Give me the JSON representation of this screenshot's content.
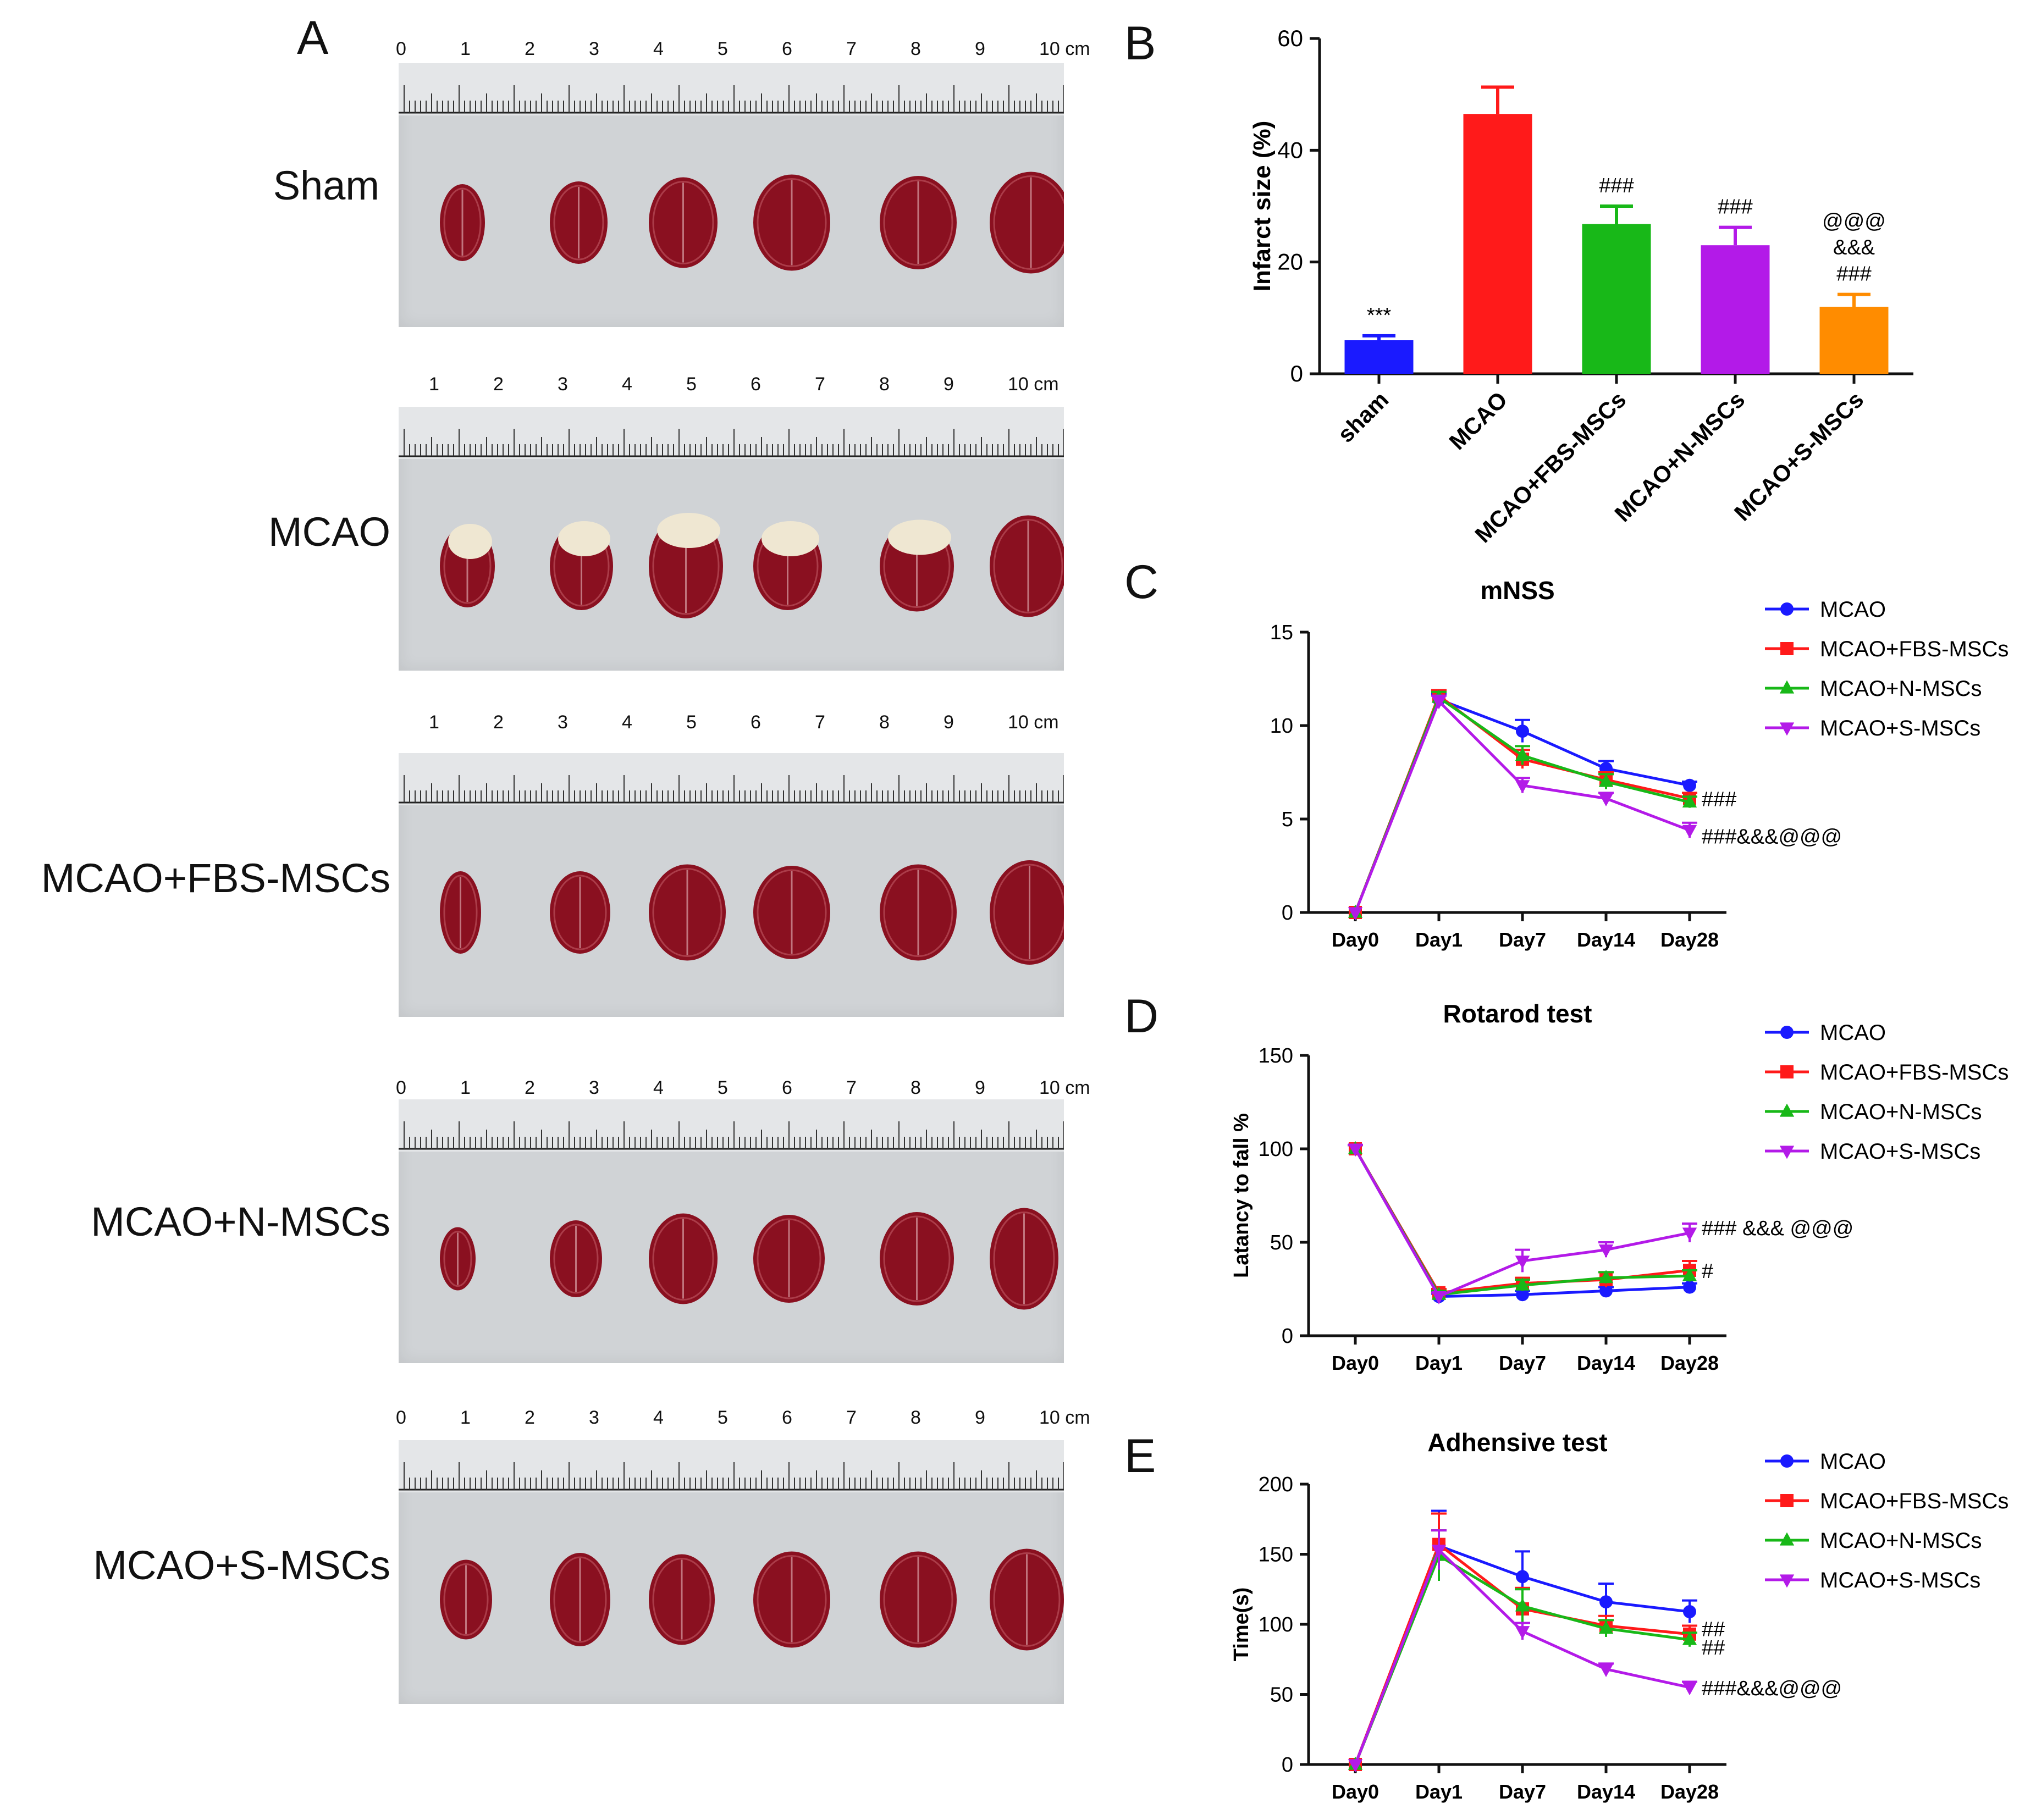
{
  "panel_letters": {
    "a": "A",
    "b": "B",
    "c": "C",
    "d": "D",
    "e": "E"
  },
  "photos": [
    {
      "group": "Sham",
      "scale": [
        "0",
        "1",
        "2",
        "3",
        "4",
        "5",
        "6",
        "7",
        "8",
        "9",
        "10 cm"
      ]
    },
    {
      "group": "MCAO",
      "scale": [
        "1",
        "2",
        "3",
        "4",
        "5",
        "6",
        "7",
        "8",
        "9",
        "10 cm"
      ]
    },
    {
      "group": "MCAO+FBS-MSCs",
      "scale": [
        "1",
        "2",
        "3",
        "4",
        "5",
        "6",
        "7",
        "8",
        "9",
        "10 cm"
      ]
    },
    {
      "group": "MCAO+N-MSCs",
      "scale": [
        "0",
        "1",
        "2",
        "3",
        "4",
        "5",
        "6",
        "7",
        "8",
        "9",
        "10 cm"
      ]
    },
    {
      "group": "MCAO+S-MSCs",
      "scale": [
        "0",
        "1",
        "2",
        "3",
        "4",
        "5",
        "6",
        "7",
        "8",
        "9",
        "10 cm"
      ]
    }
  ],
  "colors": {
    "blue": "#1a1aff",
    "red": "#ff1a1a",
    "green": "#18b818",
    "purple": "#b31ae8",
    "orange": "#ff8c00",
    "tissue": "#8a1020"
  },
  "chart_data": [
    {
      "id": "B",
      "type": "bar",
      "title": "",
      "xlabel": "",
      "ylabel": "Infarct size (%)",
      "ylim": [
        0,
        60
      ],
      "yticks": [
        0,
        20,
        40,
        60
      ],
      "categories": [
        "sham",
        "MCAO",
        "MCAO+FBS-MSCs",
        "MCAO+N-MSCs",
        "MCAO+S-MSCs"
      ],
      "values": [
        6,
        46.5,
        26.8,
        23,
        12
      ],
      "errors": [
        0.8,
        4.8,
        3.2,
        3.2,
        2.2
      ],
      "bar_colors": [
        "#1a1aff",
        "#ff1a1a",
        "#18b818",
        "#b31ae8",
        "#ff8c00"
      ],
      "annotations": [
        [
          "***"
        ],
        [],
        [
          "###"
        ],
        [
          "###"
        ],
        [
          "@@@",
          "&&&",
          "###"
        ]
      ]
    },
    {
      "id": "C",
      "type": "line",
      "title": "mNSS",
      "xlabel": "",
      "ylabel": "",
      "ylim": [
        0,
        15
      ],
      "yticks": [
        0,
        5,
        10,
        15
      ],
      "categories": [
        "Day0",
        "Day1",
        "Day7",
        "Day14",
        "Day28"
      ],
      "series": [
        {
          "name": "MCAO",
          "color": "#1a1aff",
          "marker": "circle",
          "values": [
            0,
            11.4,
            9.7,
            7.7,
            6.8
          ],
          "errors": [
            0,
            0.3,
            0.6,
            0.4,
            0.2
          ]
        },
        {
          "name": "MCAO+FBS-MSCs",
          "color": "#ff1a1a",
          "marker": "square",
          "values": [
            0,
            11.6,
            8.2,
            7.1,
            6.1
          ],
          "errors": [
            0,
            0.3,
            0.5,
            0.4,
            0.3
          ]
        },
        {
          "name": "MCAO+N-MSCs",
          "color": "#18b818",
          "marker": "triangle-up",
          "values": [
            0,
            11.5,
            8.4,
            7.0,
            5.9
          ],
          "errors": [
            0,
            0.3,
            0.5,
            0.4,
            0.3
          ]
        },
        {
          "name": "MCAO+S-MSCs",
          "color": "#b31ae8",
          "marker": "triangle-down",
          "values": [
            0,
            11.3,
            6.8,
            6.1,
            4.4
          ],
          "errors": [
            0,
            0.3,
            0.4,
            0.3,
            0.4
          ]
        }
      ],
      "annotations": [
        {
          "text": "###",
          "y": 6.1
        },
        {
          "text": "###&&&@@@",
          "y": 4.1
        }
      ]
    },
    {
      "id": "D",
      "type": "line",
      "title": "Rotarod test",
      "xlabel": "",
      "ylabel": "Latancy to fall %",
      "ylim": [
        0,
        150
      ],
      "yticks": [
        0,
        50,
        100,
        150
      ],
      "categories": [
        "Day0",
        "Day1",
        "Day7",
        "Day14",
        "Day28"
      ],
      "series": [
        {
          "name": "MCAO",
          "color": "#1a1aff",
          "marker": "circle",
          "values": [
            100,
            21,
            22,
            24,
            26
          ],
          "errors": [
            2,
            1.5,
            2,
            2,
            2
          ]
        },
        {
          "name": "MCAO+FBS-MSCs",
          "color": "#ff1a1a",
          "marker": "square",
          "values": [
            100,
            23,
            28,
            30,
            35
          ],
          "errors": [
            2,
            2,
            3,
            4,
            5
          ]
        },
        {
          "name": "MCAO+N-MSCs",
          "color": "#18b818",
          "marker": "triangle-up",
          "values": [
            100,
            22,
            27,
            31,
            32
          ],
          "errors": [
            2,
            2,
            3,
            3,
            3
          ]
        },
        {
          "name": "MCAO+S-MSCs",
          "color": "#b31ae8",
          "marker": "triangle-down",
          "values": [
            100,
            21,
            40,
            46,
            55
          ],
          "errors": [
            2,
            2,
            6,
            4,
            5
          ]
        }
      ],
      "annotations": [
        {
          "text": "### &&& @@@",
          "y": 58
        },
        {
          "text": "#",
          "y": 35
        }
      ]
    },
    {
      "id": "E",
      "type": "line",
      "title": "Adhensive test",
      "xlabel": "",
      "ylabel": "Time(s)",
      "ylim": [
        0,
        200
      ],
      "yticks": [
        0,
        50,
        100,
        150,
        200
      ],
      "categories": [
        "Day0",
        "Day1",
        "Day7",
        "Day14",
        "Day28"
      ],
      "series": [
        {
          "name": "MCAO",
          "color": "#1a1aff",
          "marker": "circle",
          "values": [
            0,
            156,
            134,
            116,
            109
          ],
          "errors": [
            0,
            25,
            18,
            13,
            8
          ]
        },
        {
          "name": "MCAO+FBS-MSCs",
          "color": "#ff1a1a",
          "marker": "square",
          "values": [
            0,
            157,
            111,
            99,
            93
          ],
          "errors": [
            0,
            22,
            15,
            7,
            6
          ]
        },
        {
          "name": "MCAO+N-MSCs",
          "color": "#18b818",
          "marker": "triangle-up",
          "values": [
            0,
            149,
            113,
            97,
            89
          ],
          "errors": [
            0,
            18,
            12,
            6,
            5
          ]
        },
        {
          "name": "MCAO+S-MSCs",
          "color": "#b31ae8",
          "marker": "triangle-down",
          "values": [
            0,
            153,
            95,
            68,
            55
          ],
          "errors": [
            0,
            14,
            6,
            4,
            4
          ]
        }
      ],
      "annotations": [
        {
          "text": "##",
          "y": 97
        },
        {
          "text": "##",
          "y": 84
        },
        {
          "text": "###&&&@@@",
          "y": 55
        }
      ]
    }
  ]
}
